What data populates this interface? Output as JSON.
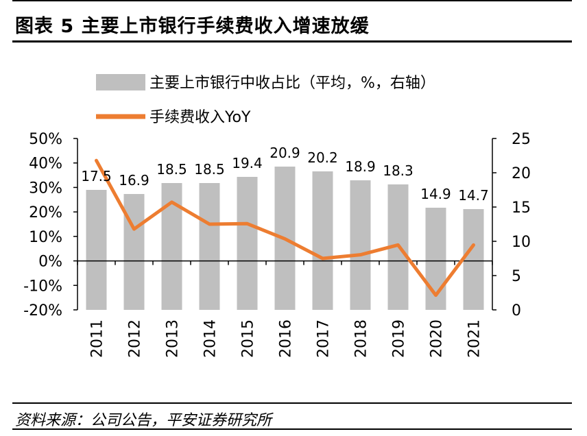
{
  "header": {
    "title": "图表 5 主要上市银行手续费收入增速放缓"
  },
  "footer": {
    "source": "资料来源：公司公告，平安证券研究所"
  },
  "chart_data": {
    "type": "bar",
    "categories": [
      "2011",
      "2012",
      "2013",
      "2014",
      "2015",
      "2016",
      "2017",
      "2018",
      "2019",
      "2020",
      "2021"
    ],
    "series": [
      {
        "name": "主要上市银行中收占比（平均，%，右轴）",
        "type": "bar",
        "axis": "right",
        "color": "#bfbfbf",
        "values": [
          17.5,
          16.9,
          18.5,
          18.5,
          19.4,
          20.9,
          20.2,
          18.9,
          18.3,
          14.9,
          14.7
        ],
        "data_labels": [
          "17.5",
          "16.9",
          "18.5",
          "18.5",
          "19.4",
          "20.9",
          "20.2",
          "18.9",
          "18.3",
          "14.9",
          "14.7"
        ]
      },
      {
        "name": "手续费收入YoY",
        "type": "line",
        "axis": "left",
        "color": "#ed7d31",
        "values": [
          0.41,
          0.13,
          0.24,
          0.15,
          0.152,
          0.09,
          0.01,
          0.025,
          0.065,
          -0.14,
          0.065
        ]
      }
    ],
    "left_axis": {
      "ylim": [
        -0.2,
        0.5
      ],
      "ticks": [
        -0.2,
        -0.1,
        0,
        0.1,
        0.2,
        0.3,
        0.4,
        0.5
      ],
      "tick_labels": [
        "-20%",
        "-10%",
        "0%",
        "10%",
        "20%",
        "30%",
        "40%",
        "50%"
      ]
    },
    "right_axis": {
      "ylim": [
        0,
        25
      ],
      "ticks": [
        0,
        5,
        10,
        15,
        20,
        25
      ],
      "tick_labels": [
        "0",
        "5",
        "10",
        "15",
        "20",
        "25"
      ]
    },
    "legend": {
      "placement": "top"
    },
    "grid": false
  }
}
